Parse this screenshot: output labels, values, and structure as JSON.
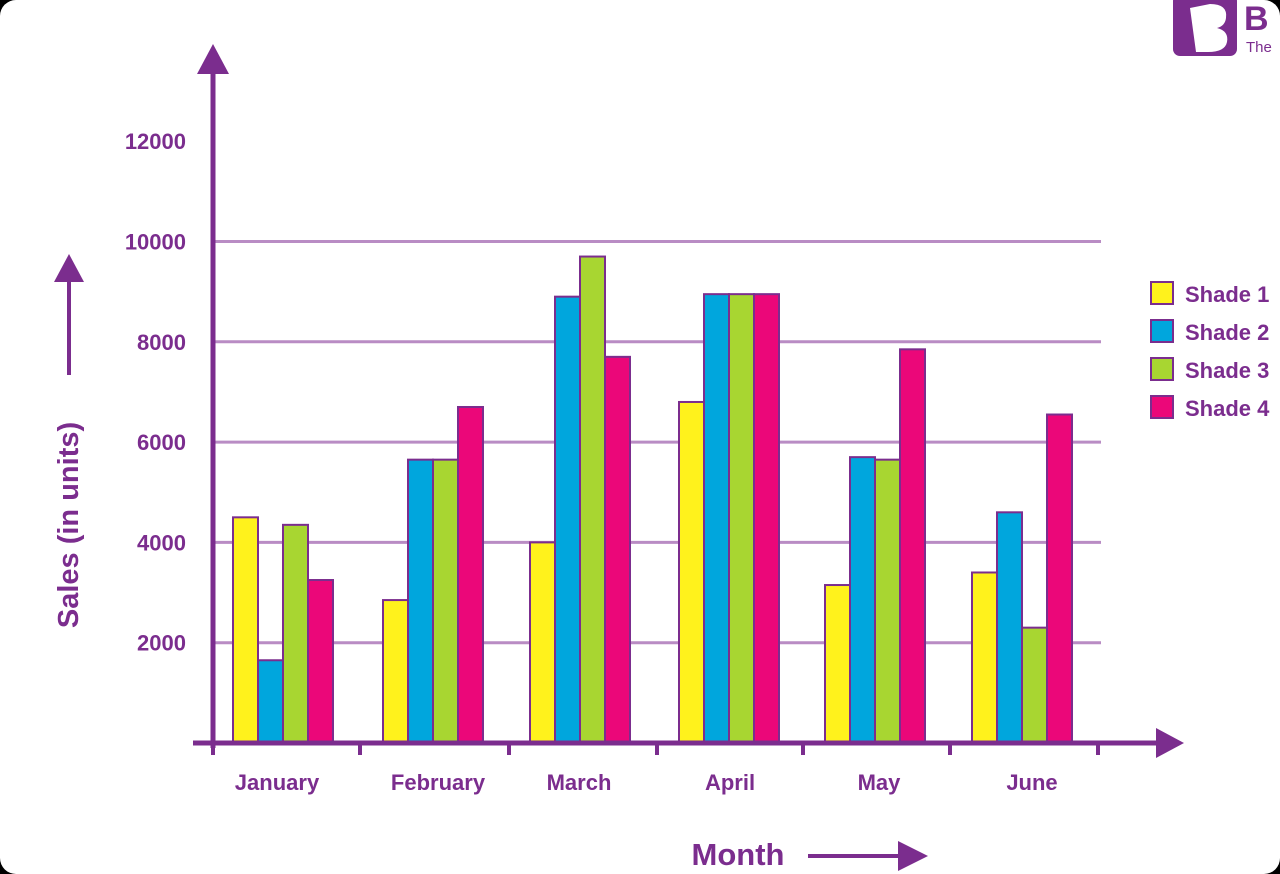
{
  "logo": {
    "letter": "B",
    "partial_text": "The"
  },
  "colors": {
    "accent": "#7B2D8E",
    "grid": "#B98CC4",
    "series": [
      "#FFF21C",
      "#00A6DD",
      "#A8D631",
      "#EB0779"
    ],
    "logo_bg": "#7B2D8E"
  },
  "chart_data": {
    "type": "bar",
    "title": "",
    "xlabel": "Month",
    "ylabel": "Sales (in units)",
    "categories": [
      "January",
      "February",
      "March",
      "April",
      "May",
      "June"
    ],
    "series": [
      {
        "name": "Shade 1",
        "values": [
          4500,
          2850,
          4000,
          6800,
          3150,
          3400
        ]
      },
      {
        "name": "Shade 2",
        "values": [
          1650,
          5650,
          8900,
          8950,
          5700,
          4600
        ]
      },
      {
        "name": "Shade 3",
        "values": [
          4350,
          5650,
          9700,
          8950,
          5650,
          2300
        ]
      },
      {
        "name": "Shade 4",
        "values": [
          3250,
          6700,
          7700,
          8950,
          7850,
          6550
        ]
      }
    ],
    "ylim": [
      0,
      12000
    ],
    "yticks": [
      2000,
      4000,
      6000,
      8000,
      10000,
      12000
    ],
    "ytick_labels": [
      "2000",
      "4000",
      "6000",
      "8000",
      "10000",
      "12000"
    ],
    "grid_lines_at": [
      2000,
      4000,
      6000,
      8000,
      10000
    ],
    "grid": true,
    "legend_position": "right"
  }
}
